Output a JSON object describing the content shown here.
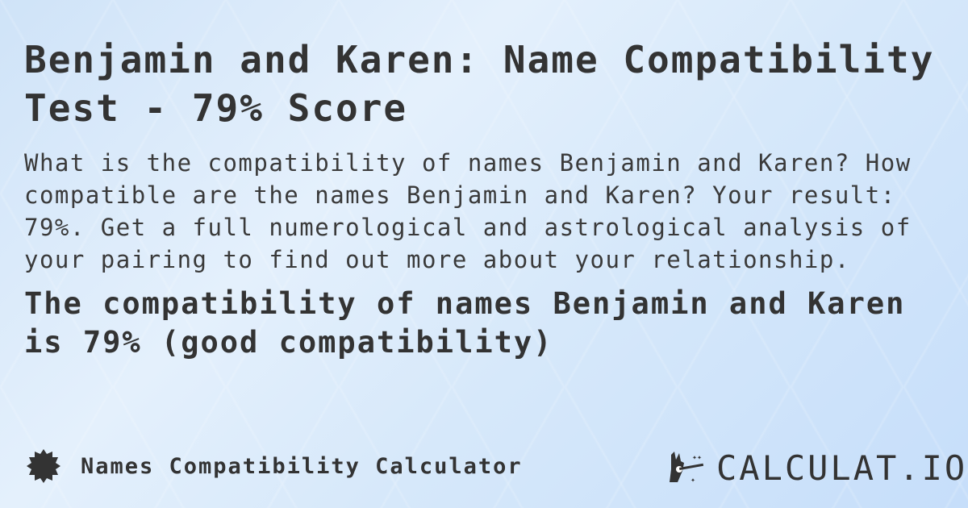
{
  "title": "Benjamin and Karen: Name Compatibility Test - 79% Score",
  "description": "What is the compatibility of names Benjamin and Karen? How compatible are the names Benjamin and Karen? Your result: 79%. Get a full numerological and astrological analysis of your pairing to find out more about your relationship.",
  "result": "The compatibility of names Benjamin and Karen is 79% (good compatibility)",
  "footer": {
    "calculator_name": "Names Compatibility Calculator",
    "icon": "badge-icon"
  },
  "logo": {
    "text": "CALCULAT.IO",
    "icon": "magic-hand-icon"
  },
  "colors": {
    "text": "#333333",
    "background": "#d6e8fa"
  }
}
